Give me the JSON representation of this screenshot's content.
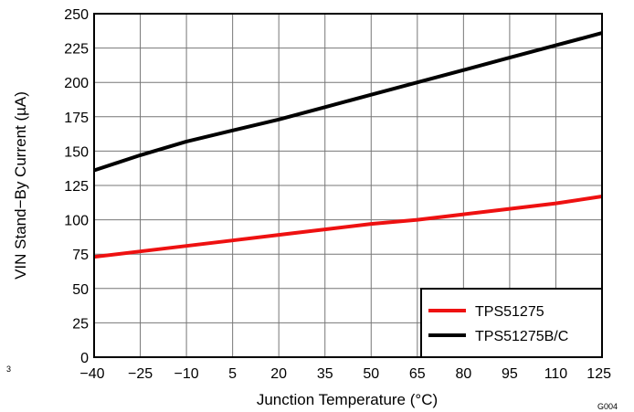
{
  "chart_data": {
    "type": "line",
    "title": "",
    "xlabel": "Junction Temperature (°C)",
    "ylabel": "VIN Stand−By Current (µA)",
    "xlim": [
      -40,
      125
    ],
    "ylim": [
      0,
      250
    ],
    "x_ticks": [
      -40,
      -25,
      -10,
      5,
      20,
      35,
      50,
      65,
      80,
      95,
      110,
      125
    ],
    "x_tick_labels": [
      "−40",
      "−25",
      "−10",
      "5",
      "20",
      "35",
      "50",
      "65",
      "80",
      "95",
      "110",
      "125"
    ],
    "y_ticks": [
      0,
      25,
      50,
      75,
      100,
      125,
      150,
      175,
      200,
      225,
      250
    ],
    "y_tick_labels": [
      "0",
      "25",
      "50",
      "75",
      "100",
      "125",
      "150",
      "175",
      "200",
      "225",
      "250"
    ],
    "grid": true,
    "legend_position": "bottom-right",
    "series": [
      {
        "name": "TPS51275",
        "color": "#ee1111",
        "x": [
          -40,
          -25,
          -10,
          5,
          20,
          35,
          50,
          65,
          80,
          95,
          110,
          125
        ],
        "values": [
          73,
          77,
          81,
          85,
          89,
          93,
          97,
          100,
          104,
          108,
          112,
          117
        ]
      },
      {
        "name": "TPS51275B/C",
        "color": "#000000",
        "x": [
          -40,
          -25,
          -10,
          5,
          20,
          35,
          50,
          65,
          80,
          95,
          110,
          125
        ],
        "values": [
          136,
          147,
          157,
          165,
          173,
          182,
          191,
          200,
          209,
          218,
          227,
          236
        ]
      }
    ]
  },
  "corner_mark_left": "3",
  "corner_mark_right": "G004"
}
